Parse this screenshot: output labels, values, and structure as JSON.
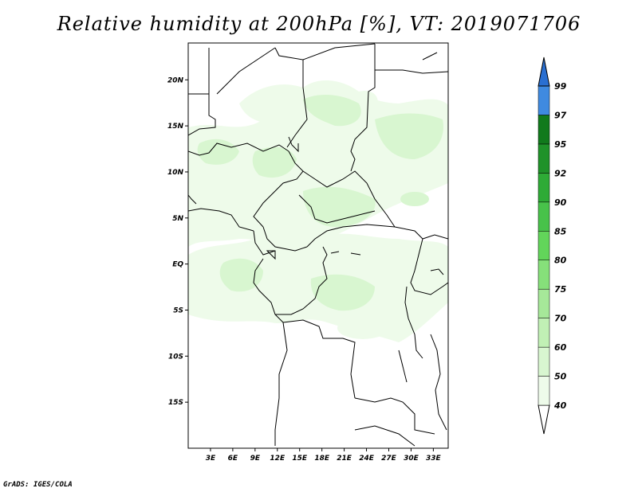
{
  "title": "Relative humidity at 200hPa [%], VT: 2019071706",
  "credit": "GrADS: IGES/COLA",
  "map": {
    "lat_labels": [
      "20N",
      "15N",
      "10N",
      "5N",
      "EQ",
      "5S",
      "10S",
      "15S"
    ],
    "lon_labels": [
      "3E",
      "6E",
      "9E",
      "12E",
      "15E",
      "18E",
      "21E",
      "24E",
      "27E",
      "30E",
      "33E"
    ],
    "lat_range": [
      -20,
      24
    ],
    "lon_range": [
      0,
      35
    ]
  },
  "colorbar": {
    "labels": [
      "40",
      "50",
      "60",
      "70",
      "75",
      "80",
      "85",
      "90",
      "92",
      "95",
      "97",
      "99"
    ],
    "colors": {
      "40": "#eefbea",
      "50": "#d8f6d0",
      "60": "#c1f0b5",
      "70": "#a6e899",
      "75": "#86e07a",
      "80": "#62d55a",
      "85": "#48c24a",
      "90": "#2eab36",
      "92": "#1f9229",
      "95": "#117a1c",
      "97": "#3f8ae0",
      "99": "#1d63c8"
    },
    "tail_color": "#2a6fd1"
  }
}
